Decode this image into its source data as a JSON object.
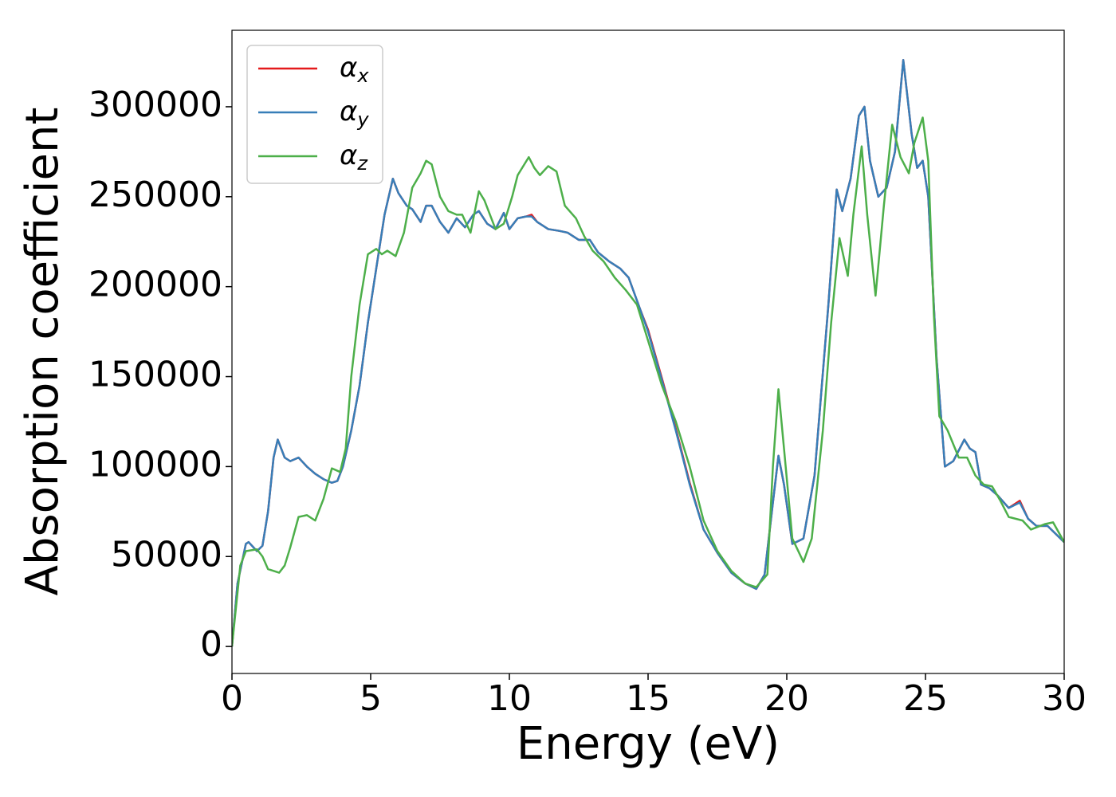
{
  "chart_data": {
    "type": "line",
    "xlabel": "Energy (eV)",
    "ylabel": "Absorption coefficient",
    "xlim": [
      0,
      30
    ],
    "ylim": [
      -15000,
      342500
    ],
    "xticks": [
      0,
      5,
      10,
      15,
      20,
      25,
      30
    ],
    "yticks": [
      0,
      50000,
      100000,
      150000,
      200000,
      250000,
      300000
    ],
    "legend": "upper left",
    "series": [
      {
        "name": "αx",
        "color": "#e41a1c",
        "x": [
          0,
          0.2,
          0.5,
          0.6,
          0.9,
          1.1,
          1.3,
          1.5,
          1.65,
          1.9,
          2.1,
          2.4,
          2.7,
          3.0,
          3.3,
          3.6,
          3.8,
          4.0,
          4.3,
          4.6,
          4.9,
          5.2,
          5.5,
          5.8,
          6.0,
          6.3,
          6.5,
          6.8,
          7.0,
          7.2,
          7.5,
          7.8,
          8.1,
          8.4,
          8.7,
          8.9,
          9.2,
          9.5,
          9.8,
          10.0,
          10.3,
          10.6,
          10.8,
          11.0,
          11.4,
          11.8,
          12.1,
          12.5,
          12.9,
          13.2,
          13.6,
          14.0,
          14.3,
          14.7,
          15.0,
          15.5,
          16.0,
          16.5,
          17.0,
          17.5,
          18.0,
          18.5,
          18.9,
          19.2,
          19.5,
          19.7,
          19.9,
          20.2,
          20.6,
          21.0,
          21.5,
          21.8,
          22.0,
          22.3,
          22.6,
          22.8,
          23.0,
          23.3,
          23.6,
          23.9,
          24.2,
          24.5,
          24.7,
          24.9,
          25.1,
          25.4,
          25.7,
          26.0,
          26.4,
          26.6,
          26.8,
          27.0,
          27.3,
          27.6,
          28.0,
          28.4,
          28.7,
          29.0,
          29.4,
          30
        ],
        "values": [
          0,
          35000,
          57000,
          58000,
          53000,
          56000,
          75000,
          105000,
          115000,
          105000,
          103000,
          105000,
          100000,
          96000,
          93000,
          91000,
          92000,
          100000,
          120000,
          145000,
          180000,
          210000,
          240000,
          260000,
          252000,
          245000,
          243000,
          236000,
          245000,
          245000,
          236000,
          230000,
          238000,
          233000,
          240000,
          242000,
          235000,
          232000,
          241000,
          232000,
          238000,
          239000,
          240000,
          236000,
          232000,
          231000,
          230000,
          226000,
          226000,
          219000,
          214000,
          210000,
          205000,
          188000,
          176000,
          149000,
          121000,
          91000,
          65000,
          52000,
          41000,
          35000,
          32000,
          40000,
          80000,
          106000,
          90000,
          57000,
          60000,
          95000,
          190000,
          254000,
          242000,
          260000,
          295000,
          300000,
          270000,
          250000,
          255000,
          275000,
          326000,
          285000,
          266000,
          270000,
          250000,
          160000,
          100000,
          103000,
          115000,
          110000,
          108000,
          90000,
          88000,
          84000,
          77000,
          81000,
          71000,
          67000,
          67000,
          58000
        ]
      },
      {
        "name": "αy",
        "color": "#377eb8",
        "x": [
          0,
          0.2,
          0.5,
          0.6,
          0.9,
          1.1,
          1.3,
          1.5,
          1.65,
          1.9,
          2.1,
          2.4,
          2.7,
          3.0,
          3.3,
          3.6,
          3.8,
          4.0,
          4.3,
          4.6,
          4.9,
          5.2,
          5.5,
          5.8,
          6.0,
          6.3,
          6.5,
          6.8,
          7.0,
          7.2,
          7.5,
          7.8,
          8.1,
          8.4,
          8.7,
          8.9,
          9.2,
          9.5,
          9.8,
          10.0,
          10.3,
          10.6,
          10.8,
          11.0,
          11.4,
          11.8,
          12.1,
          12.5,
          12.9,
          13.2,
          13.6,
          14.0,
          14.3,
          14.7,
          15.0,
          15.5,
          16.0,
          16.5,
          17.0,
          17.5,
          18.0,
          18.5,
          18.9,
          19.2,
          19.5,
          19.7,
          19.9,
          20.2,
          20.6,
          21.0,
          21.5,
          21.8,
          22.0,
          22.3,
          22.6,
          22.8,
          23.0,
          23.3,
          23.6,
          23.9,
          24.2,
          24.5,
          24.7,
          24.9,
          25.1,
          25.4,
          25.7,
          26.0,
          26.4,
          26.6,
          26.8,
          27.0,
          27.3,
          27.6,
          28.0,
          28.4,
          28.7,
          29.0,
          29.4,
          30
        ],
        "values": [
          0,
          35000,
          57000,
          58000,
          53000,
          56000,
          75000,
          105000,
          115000,
          105000,
          103000,
          105000,
          100000,
          96000,
          93000,
          91000,
          92000,
          100000,
          120000,
          145000,
          180000,
          210000,
          240000,
          260000,
          252000,
          245000,
          243000,
          236000,
          245000,
          245000,
          236000,
          230000,
          238000,
          233000,
          240000,
          242000,
          235000,
          232000,
          241000,
          232000,
          238000,
          239000,
          239000,
          236000,
          232000,
          231000,
          230000,
          226000,
          226000,
          219000,
          214000,
          210000,
          205000,
          188000,
          175000,
          148000,
          120000,
          90000,
          65000,
          52000,
          41000,
          35000,
          32000,
          40000,
          80000,
          106000,
          90000,
          57000,
          60000,
          95000,
          190000,
          254000,
          242000,
          260000,
          295000,
          300000,
          270000,
          250000,
          255000,
          275000,
          326000,
          285000,
          266000,
          270000,
          250000,
          160000,
          100000,
          103000,
          115000,
          110000,
          108000,
          90000,
          88000,
          84000,
          77000,
          80000,
          71000,
          67000,
          67000,
          58000
        ]
      },
      {
        "name": "αz",
        "color": "#4daf4a",
        "x": [
          0,
          0.3,
          0.5,
          0.9,
          1.1,
          1.3,
          1.7,
          1.9,
          2.1,
          2.4,
          2.7,
          3.0,
          3.3,
          3.6,
          3.9,
          4.1,
          4.3,
          4.6,
          4.9,
          5.2,
          5.4,
          5.6,
          5.9,
          6.2,
          6.5,
          6.8,
          7.0,
          7.2,
          7.5,
          7.8,
          8.1,
          8.3,
          8.6,
          8.9,
          9.1,
          9.5,
          9.8,
          10.1,
          10.3,
          10.7,
          10.9,
          11.1,
          11.4,
          11.7,
          12.0,
          12.4,
          12.7,
          13.0,
          13.4,
          13.8,
          14.2,
          14.6,
          15.0,
          15.5,
          16.0,
          16.5,
          17.0,
          17.5,
          18.0,
          18.5,
          18.9,
          19.3,
          19.5,
          19.7,
          19.9,
          20.2,
          20.6,
          20.9,
          21.3,
          21.6,
          21.9,
          22.2,
          22.4,
          22.7,
          22.9,
          23.2,
          23.5,
          23.8,
          24.1,
          24.4,
          24.6,
          24.9,
          25.1,
          25.3,
          25.5,
          25.8,
          26.2,
          26.5,
          26.8,
          27.1,
          27.4,
          27.7,
          28.0,
          28.5,
          28.8,
          29.3,
          29.6,
          30
        ],
        "values": [
          0,
          45000,
          53000,
          54000,
          50000,
          43000,
          41000,
          45000,
          55000,
          72000,
          73000,
          70000,
          82000,
          99000,
          97000,
          110000,
          150000,
          190000,
          218000,
          221000,
          218000,
          220000,
          217000,
          230000,
          255000,
          263000,
          270000,
          268000,
          250000,
          242000,
          240000,
          240000,
          230000,
          253000,
          248000,
          232000,
          235000,
          250000,
          262000,
          272000,
          266000,
          262000,
          267000,
          264000,
          245000,
          238000,
          228000,
          220000,
          214000,
          205000,
          198000,
          190000,
          170000,
          145000,
          125000,
          100000,
          70000,
          53000,
          42000,
          35000,
          33000,
          40000,
          100000,
          143000,
          110000,
          60000,
          47000,
          60000,
          120000,
          180000,
          227000,
          206000,
          240000,
          278000,
          240000,
          195000,
          245000,
          290000,
          272000,
          263000,
          280000,
          294000,
          270000,
          185000,
          128000,
          120000,
          105000,
          105000,
          95000,
          90000,
          89000,
          81000,
          72000,
          70000,
          65000,
          68000,
          69000,
          58000
        ]
      }
    ]
  }
}
